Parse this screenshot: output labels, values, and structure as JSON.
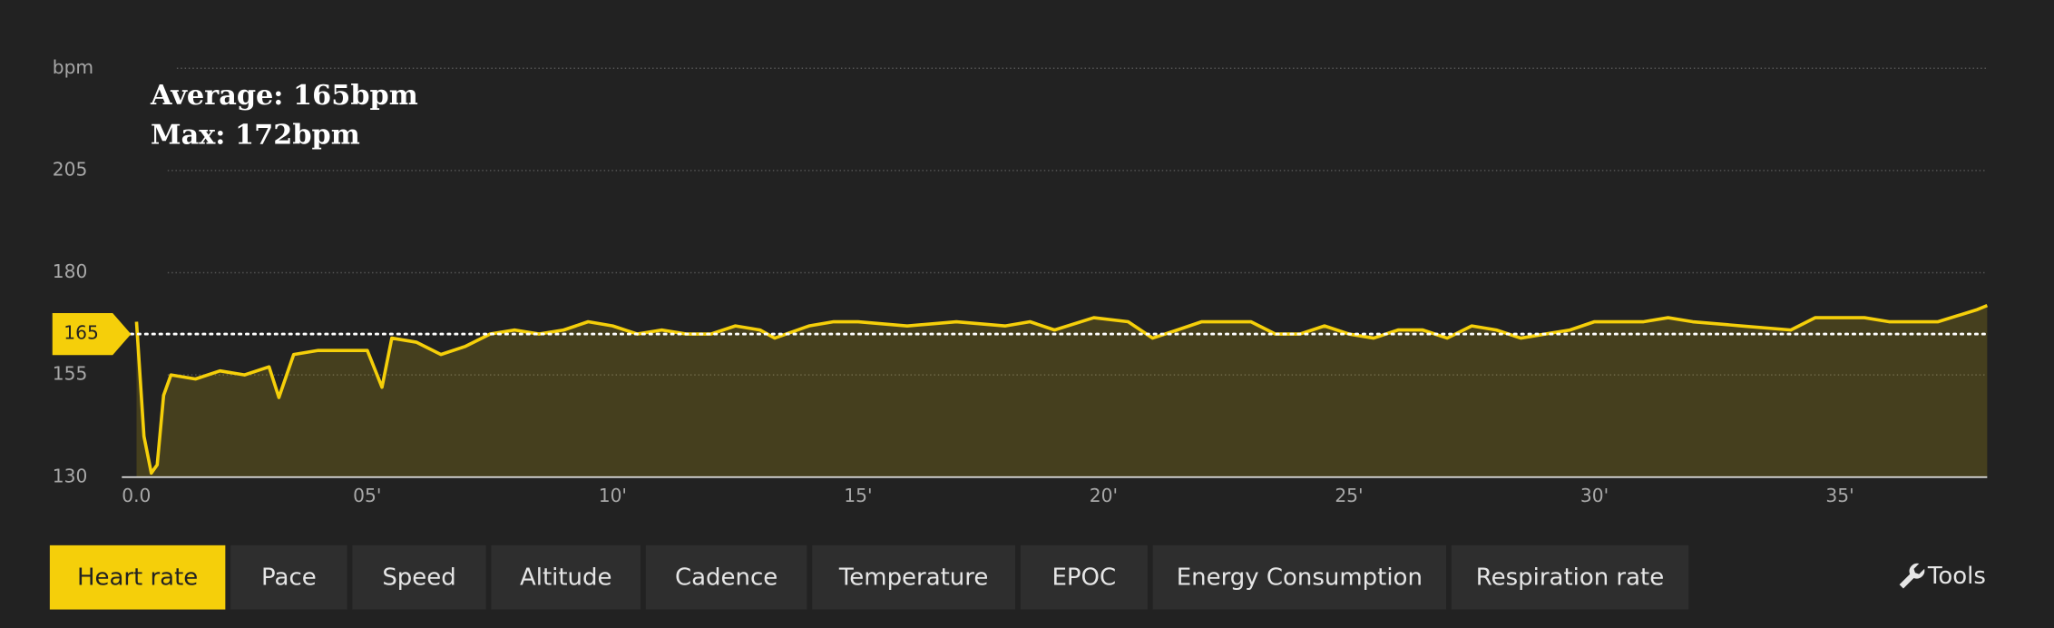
{
  "chart_data": {
    "type": "line",
    "ylabel": "bpm",
    "annotations": [
      "Average: 165bpm",
      "Max: 172bpm"
    ],
    "average": 165,
    "average_label": "165",
    "xlim": [
      0,
      38
    ],
    "xticks": [
      {
        "value": 0,
        "label": "0.0"
      },
      {
        "value": 5,
        "label": "05'"
      },
      {
        "value": 10,
        "label": "10'"
      },
      {
        "value": 15,
        "label": "15'"
      },
      {
        "value": 20,
        "label": "20'"
      },
      {
        "value": 25,
        "label": "25'"
      },
      {
        "value": 30,
        "label": "30'"
      },
      {
        "value": 35,
        "label": "35'"
      }
    ],
    "ylim": [
      130,
      230
    ],
    "yticks": [
      130,
      155,
      180,
      205
    ],
    "grid": true,
    "series": [
      {
        "name": "Heart rate",
        "color": "#f5cf0a",
        "x": [
          0.3,
          0.45,
          0.6,
          0.72,
          0.85,
          1.0,
          1.5,
          2.0,
          2.5,
          3.0,
          3.2,
          3.5,
          4.0,
          5.0,
          5.3,
          5.5,
          6.0,
          6.5,
          7.0,
          7.5,
          8.0,
          8.5,
          9.0,
          9.5,
          10.0,
          10.5,
          11.0,
          11.5,
          12.0,
          12.5,
          13.0,
          13.3,
          14.0,
          14.5,
          15.0,
          16.0,
          17.0,
          18.0,
          18.5,
          19.0,
          19.8,
          20.5,
          21.0,
          21.5,
          22.0,
          23.0,
          23.5,
          24.0,
          24.5,
          25.0,
          25.5,
          26.0,
          26.5,
          27.0,
          27.5,
          28.0,
          28.5,
          29.0,
          29.5,
          30.0,
          31.0,
          31.5,
          32.0,
          33.0,
          34.0,
          34.5,
          35.5,
          36.0,
          37.0,
          37.8,
          38.0
        ],
        "values": [
          168,
          140,
          131,
          133,
          150,
          155,
          154,
          156,
          155,
          157,
          149.5,
          160,
          161,
          161,
          152,
          164,
          163,
          160,
          162,
          165,
          166,
          165,
          166,
          168,
          167,
          165,
          166,
          165,
          165,
          167,
          166,
          164,
          167,
          168,
          168,
          167,
          168,
          167,
          168,
          166,
          169,
          168,
          164,
          166,
          168,
          168,
          165,
          165,
          167,
          165,
          164,
          166,
          166,
          164,
          167,
          166,
          164,
          165,
          166,
          168,
          168,
          169,
          168,
          167,
          166,
          169,
          169,
          168,
          168,
          171,
          172
        ]
      }
    ]
  },
  "tabs": [
    "Heart rate",
    "Pace",
    "Speed",
    "Altitude",
    "Cadence",
    "Temperature",
    "EPOC",
    "Energy Consumption",
    "Respiration rate"
  ],
  "tools": "Tools"
}
